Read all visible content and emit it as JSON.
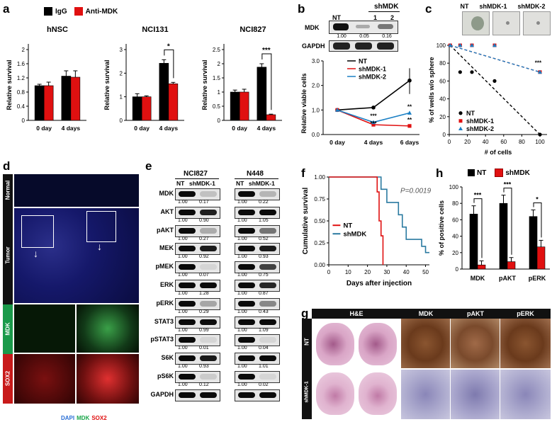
{
  "panels": {
    "a": {
      "label": "a",
      "legend": [
        {
          "name": "IgG",
          "color": "#000000"
        },
        {
          "name": "Anti-MDK",
          "color": "#e01010"
        }
      ],
      "ylabel": "Relative survival",
      "charts": [
        {
          "title": "hNSC",
          "categories": [
            "0 day",
            "4 days"
          ],
          "series": [
            {
              "name": "IgG",
              "values": [
                0.98,
                1.25
              ],
              "err": [
                0.04,
                0.15
              ]
            },
            {
              "name": "Anti-MDK",
              "values": [
                0.98,
                1.22
              ],
              "err": [
                0.1,
                0.18
              ]
            }
          ],
          "ylim": [
            0,
            2.0
          ],
          "ticks": [
            "0",
            "0.4",
            "0.8",
            "1.2",
            "1.6",
            "2"
          ],
          "sig": ""
        },
        {
          "title": "NCI131",
          "categories": [
            "0 day",
            "4 days"
          ],
          "series": [
            {
              "name": "IgG",
              "values": [
                1.0,
                2.42
              ],
              "err": [
                0.13,
                0.15
              ]
            },
            {
              "name": "Anti-MDK",
              "values": [
                1.0,
                1.55
              ],
              "err": [
                0.04,
                0.06
              ]
            }
          ],
          "ylim": [
            0,
            3
          ],
          "ticks": [
            "0",
            "1",
            "2",
            "3"
          ],
          "sig": "*"
        },
        {
          "title": "NCI827",
          "categories": [
            "0 day",
            "4 days"
          ],
          "series": [
            {
              "name": "IgG",
              "values": [
                1.0,
                1.88
              ],
              "err": [
                0.07,
                0.12
              ]
            },
            {
              "name": "Anti-MDK",
              "values": [
                1.0,
                0.2
              ],
              "err": [
                0.1,
                0.02
              ]
            }
          ],
          "ylim": [
            0,
            2.5
          ],
          "ticks": [
            "0",
            "0.5",
            "1",
            "1.5",
            "2",
            "2.5"
          ],
          "sig": "***"
        }
      ]
    },
    "b": {
      "label": "b",
      "blot_header": {
        "nt": "NT",
        "shmdk": "shMDK",
        "n1": "1",
        "n2": "2"
      },
      "blot_rows": [
        {
          "name": "MDK",
          "values": [
            "1.00",
            "0.05",
            "0.16"
          ]
        },
        {
          "name": "GAPDH",
          "values": []
        }
      ],
      "chart": {
        "ylabel": "Relative viable cells",
        "categories": [
          "0 day",
          "4 days",
          "6 days"
        ],
        "ylim": [
          0,
          3.0
        ],
        "ticks": [
          "0.0",
          "1.0",
          "2.0",
          "3.0"
        ],
        "series": [
          {
            "name": "NT",
            "color": "#000000",
            "values": [
              1.0,
              1.1,
              2.2
            ]
          },
          {
            "name": "shMDK-1",
            "color": "#e01010",
            "values": [
              1.0,
              0.4,
              0.35
            ]
          },
          {
            "name": "shMDK-2",
            "color": "#1a7fc4",
            "values": [
              1.0,
              0.5,
              0.88
            ]
          }
        ],
        "sig": [
          "***",
          "***",
          "**",
          "**"
        ]
      }
    },
    "c": {
      "label": "c",
      "sphere_labels": [
        "NT",
        "shMDK-1",
        "shMDK-2"
      ],
      "chart": {
        "ylabel": "% of wells w/o sphere",
        "xlabel": "# of cells",
        "ticks_x": [
          "0",
          "20",
          "40",
          "60",
          "80",
          "100"
        ],
        "ticks_y": [
          "0",
          "20",
          "40",
          "60",
          "80",
          "100"
        ],
        "series": [
          {
            "name": "NT",
            "color": "#000000",
            "x": [
              1,
              12,
              25,
              50,
              100
            ],
            "y": [
              100,
              70,
              70,
              60,
              0
            ]
          },
          {
            "name": "shMDK-1",
            "color": "#e01010",
            "x": [
              1,
              12,
              25,
              50,
              100
            ],
            "y": [
              100,
              100,
              100,
              100,
              70
            ]
          },
          {
            "name": "shMDK-2",
            "color": "#1a7fc4",
            "x": [
              1,
              12,
              25,
              50,
              100
            ],
            "y": [
              100,
              100,
              100,
              100,
              70
            ]
          }
        ],
        "sig": "***"
      }
    },
    "d": {
      "label": "d",
      "rows": [
        "Normal",
        "Tumor",
        "MDK",
        "SOX2"
      ],
      "footer": [
        {
          "text": "DAPI",
          "color": "#2a6fd6"
        },
        {
          "text": "MDK",
          "color": "#1aa64a"
        },
        {
          "text": "SOX2",
          "color": "#e01010"
        }
      ]
    },
    "e": {
      "label": "e",
      "groups": [
        {
          "title": "NCI827",
          "nt": "NT",
          "sh": "shMDK-1"
        },
        {
          "title": "N448",
          "nt": "NT",
          "sh": "shMDK-1"
        }
      ],
      "rows": [
        {
          "name": "MDK",
          "v": [
            "1.00",
            "0.17",
            "1.00",
            "0.22"
          ]
        },
        {
          "name": "AKT",
          "v": [
            "1.00",
            "0.90",
            "1.00",
            "1.05"
          ]
        },
        {
          "name": "pAKT",
          "v": [
            "1.00",
            "0.27",
            "1.00",
            "0.52"
          ]
        },
        {
          "name": "MEK",
          "v": [
            "1.00",
            "0.92",
            "1.00",
            "0.93"
          ]
        },
        {
          "name": "pMEK",
          "v": [
            "1.00",
            "0.07",
            "1.00",
            "0.75"
          ]
        },
        {
          "name": "ERK",
          "v": [
            "1.00",
            "1.28",
            "1.00",
            "0.87"
          ]
        },
        {
          "name": "pERK",
          "v": [
            "1.00",
            "0.29",
            "1.00",
            "0.43"
          ]
        },
        {
          "name": "STAT3",
          "v": [
            "1.00",
            "0.99",
            "1.00",
            "1.09"
          ]
        },
        {
          "name": "pSTAT3",
          "v": [
            "1.00",
            "0.01",
            "1.00",
            "0.04"
          ]
        },
        {
          "name": "S6K",
          "v": [
            "1.00",
            "0.93",
            "1.00",
            "1.01"
          ]
        },
        {
          "name": "pS6K",
          "v": [
            "1.00",
            "0.12",
            "1.00",
            "0.02"
          ]
        },
        {
          "name": "GAPDH",
          "v": []
        }
      ]
    },
    "f": {
      "label": "f",
      "ylabel": "Cumulative survival",
      "xlabel": "Days after injection",
      "pvalue": "P=0.0019",
      "ticks_x": [
        "0",
        "10",
        "20",
        "30",
        "40",
        "50"
      ],
      "ticks_y": [
        "0.00",
        "0.25",
        "0.50",
        "0.75",
        "1.00"
      ],
      "series": [
        {
          "name": "NT",
          "color": "#e01010"
        },
        {
          "name": "shMDK",
          "color": "#2a7aa0"
        }
      ]
    },
    "g": {
      "label": "g",
      "headers": [
        "H&E",
        "MDK",
        "pAKT",
        "pERK"
      ],
      "rows": [
        "NT",
        "shMDK-1"
      ]
    },
    "h": {
      "label": "h",
      "legend": [
        {
          "name": "NT",
          "color": "#000000"
        },
        {
          "name": "shMDK",
          "color": "#e01010"
        }
      ],
      "ylabel": "% of positive cells",
      "categories": [
        "MDK",
        "pAKT",
        "pERK"
      ],
      "ylim": [
        0,
        100
      ],
      "ticks": [
        "0",
        "20",
        "40",
        "60",
        "80",
        "100"
      ],
      "series": [
        {
          "name": "NT",
          "values": [
            67,
            80,
            64
          ],
          "err": [
            10,
            10,
            8
          ]
        },
        {
          "name": "shMDK",
          "values": [
            5,
            9,
            27
          ],
          "err": [
            5,
            5,
            8
          ]
        }
      ],
      "sig": [
        "***",
        "***",
        "*"
      ]
    }
  },
  "chart_data": [
    {
      "type": "bar",
      "title": "hNSC",
      "categories": [
        "0 day",
        "4 days"
      ],
      "series": [
        {
          "name": "IgG",
          "values": [
            0.98,
            1.25
          ]
        },
        {
          "name": "Anti-MDK",
          "values": [
            0.98,
            1.22
          ]
        }
      ],
      "ylabel": "Relative survival",
      "ylim": [
        0,
        2
      ]
    },
    {
      "type": "bar",
      "title": "NCI131",
      "categories": [
        "0 day",
        "4 days"
      ],
      "series": [
        {
          "name": "IgG",
          "values": [
            1.0,
            2.42
          ]
        },
        {
          "name": "Anti-MDK",
          "values": [
            1.0,
            1.55
          ]
        }
      ],
      "ylabel": "Relative survival",
      "ylim": [
        0,
        3
      ]
    },
    {
      "type": "bar",
      "title": "NCI827",
      "categories": [
        "0 day",
        "4 days"
      ],
      "series": [
        {
          "name": "IgG",
          "values": [
            1.0,
            1.88
          ]
        },
        {
          "name": "Anti-MDK",
          "values": [
            1.0,
            0.2
          ]
        }
      ],
      "ylabel": "Relative survival",
      "ylim": [
        0,
        2.5
      ]
    },
    {
      "type": "line",
      "categories": [
        "0 day",
        "4 days",
        "6 days"
      ],
      "series": [
        {
          "name": "NT",
          "values": [
            1.0,
            1.1,
            2.2
          ]
        },
        {
          "name": "shMDK-1",
          "values": [
            1.0,
            0.4,
            0.35
          ]
        },
        {
          "name": "shMDK-2",
          "values": [
            1.0,
            0.5,
            0.88
          ]
        }
      ],
      "ylabel": "Relative viable cells",
      "ylim": [
        0,
        3
      ]
    },
    {
      "type": "scatter",
      "series": [
        {
          "name": "NT",
          "x": [
            1,
            12,
            25,
            50,
            100
          ],
          "y": [
            100,
            70,
            70,
            60,
            0
          ]
        },
        {
          "name": "shMDK-1",
          "x": [
            1,
            12,
            25,
            50,
            100
          ],
          "y": [
            100,
            100,
            100,
            100,
            70
          ]
        },
        {
          "name": "shMDK-2",
          "x": [
            1,
            12,
            25,
            50,
            100
          ],
          "y": [
            100,
            100,
            100,
            100,
            70
          ]
        }
      ],
      "xlabel": "# of cells",
      "ylabel": "% of wells w/o sphere"
    },
    {
      "type": "line",
      "series": [
        {
          "name": "NT"
        },
        {
          "name": "shMDK"
        }
      ],
      "xlabel": "Days after injection",
      "ylabel": "Cumulative survival"
    },
    {
      "type": "bar",
      "categories": [
        "MDK",
        "pAKT",
        "pERK"
      ],
      "series": [
        {
          "name": "NT",
          "values": [
            67,
            80,
            64
          ]
        },
        {
          "name": "shMDK",
          "values": [
            5,
            9,
            27
          ]
        }
      ],
      "ylabel": "% of positive cells",
      "ylim": [
        0,
        100
      ]
    }
  ]
}
